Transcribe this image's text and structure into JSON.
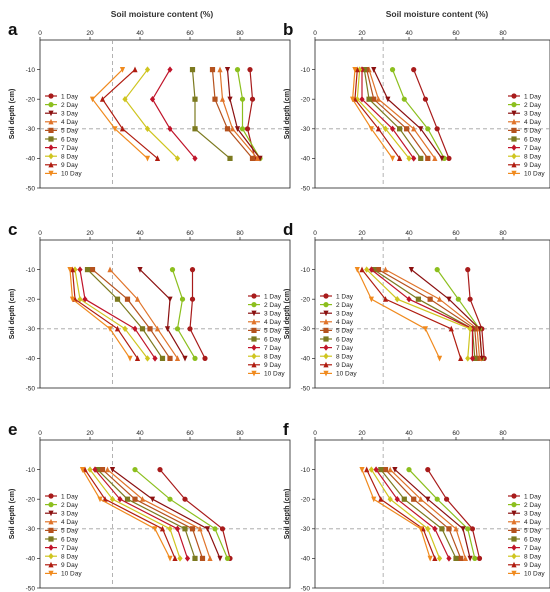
{
  "figure": {
    "column_titles": [
      "Soil moisture content (%)",
      "Soil moisture content (%)"
    ],
    "ylabel": "Soil depth (cm)"
  },
  "chart_data": [
    {
      "panel": "a",
      "type": "line",
      "xlabel": "Soil moisture content (%)",
      "ylabel": "Soil depth (cm)",
      "xlim": [
        0,
        100
      ],
      "ylim": [
        -50,
        0
      ],
      "xticks": [
        "0",
        "20",
        "40",
        "60",
        "80"
      ],
      "yticks": [
        "-10",
        "-20",
        "-30",
        "-40",
        "-50"
      ],
      "reference_lines": {
        "x": 29,
        "y": -30
      },
      "legend_position": "left",
      "depths": [
        -10,
        -20,
        -30,
        -40
      ],
      "series": [
        {
          "name": "1 Day",
          "values": [
            84,
            85,
            83,
            86
          ]
        },
        {
          "name": "2 Day",
          "values": [
            79,
            81,
            81,
            88
          ]
        },
        {
          "name": "3 Day",
          "values": [
            75,
            76,
            79,
            88
          ]
        },
        {
          "name": "4 Day",
          "values": [
            72,
            73,
            77,
            87
          ]
        },
        {
          "name": "5 Day",
          "values": [
            69,
            70,
            75,
            85
          ]
        },
        {
          "name": "6 Day",
          "values": [
            61,
            62,
            62,
            76
          ]
        },
        {
          "name": "7 Day",
          "values": [
            52,
            45,
            52,
            62
          ]
        },
        {
          "name": "8 Day",
          "values": [
            43,
            34,
            43,
            55
          ]
        },
        {
          "name": "9 Day",
          "values": [
            38,
            25,
            33,
            47
          ]
        },
        {
          "name": "10 Day",
          "values": [
            33,
            21,
            30,
            43
          ]
        }
      ]
    },
    {
      "panel": "b",
      "type": "line",
      "xlabel": "Soil moisture content (%)",
      "ylabel": "Soil depth (cm)",
      "xlim": [
        0,
        100
      ],
      "ylim": [
        -50,
        0
      ],
      "xticks": [
        "0",
        "20",
        "40",
        "60",
        "80"
      ],
      "yticks": [
        "-10",
        "-20",
        "-30",
        "-40",
        "-50"
      ],
      "reference_lines": {
        "x": 29,
        "y": -30
      },
      "legend_position": "right",
      "depths": [
        -10,
        -20,
        -30,
        -40
      ],
      "series": [
        {
          "name": "1 Day",
          "values": [
            42,
            47,
            52,
            57
          ]
        },
        {
          "name": "2 Day",
          "values": [
            33,
            38,
            48,
            55
          ]
        },
        {
          "name": "3 Day",
          "values": [
            25,
            31,
            45,
            54
          ]
        },
        {
          "name": "4 Day",
          "values": [
            23,
            27,
            42,
            51
          ]
        },
        {
          "name": "5 Day",
          "values": [
            22,
            25,
            39,
            48
          ]
        },
        {
          "name": "6 Day",
          "values": [
            21,
            23,
            36,
            45
          ]
        },
        {
          "name": "7 Day",
          "values": [
            20,
            20,
            33,
            42
          ]
        },
        {
          "name": "8 Day",
          "values": [
            19,
            18,
            30,
            40
          ]
        },
        {
          "name": "9 Day",
          "values": [
            18,
            17,
            27,
            36
          ]
        },
        {
          "name": "10 Day",
          "values": [
            17,
            16,
            24,
            33
          ]
        }
      ]
    },
    {
      "panel": "c",
      "type": "line",
      "xlabel": "Soil moisture content (%)",
      "ylabel": "Soil depth (cm)",
      "xlim": [
        0,
        100
      ],
      "ylim": [
        -50,
        0
      ],
      "xticks": [
        "0",
        "20",
        "40",
        "60",
        "80"
      ],
      "yticks": [
        "-10",
        "-20",
        "-30",
        "-40",
        "-50"
      ],
      "reference_lines": {
        "x": 29,
        "y": -30
      },
      "legend_position": "right",
      "depths": [
        -10,
        -20,
        -30,
        -40
      ],
      "series": [
        {
          "name": "1 Day",
          "values": [
            61,
            61,
            60,
            66
          ]
        },
        {
          "name": "2 Day",
          "values": [
            53,
            57,
            55,
            62
          ]
        },
        {
          "name": "3 Day",
          "values": [
            40,
            52,
            51,
            58
          ]
        },
        {
          "name": "4 Day",
          "values": [
            28,
            39,
            47,
            55
          ]
        },
        {
          "name": "5 Day",
          "values": [
            21,
            35,
            44,
            52
          ]
        },
        {
          "name": "6 Day",
          "values": [
            19,
            31,
            41,
            49
          ]
        },
        {
          "name": "7 Day",
          "values": [
            16,
            18,
            38,
            46
          ]
        },
        {
          "name": "8 Day",
          "values": [
            14,
            16,
            34,
            43
          ]
        },
        {
          "name": "9 Day",
          "values": [
            13,
            14,
            31,
            39
          ]
        },
        {
          "name": "10 Day",
          "values": [
            12,
            13,
            28,
            36
          ]
        }
      ]
    },
    {
      "panel": "d",
      "type": "line",
      "xlabel": "Soil moisture content (%)",
      "ylabel": "Soil depth (cm)",
      "xlim": [
        0,
        100
      ],
      "ylim": [
        -50,
        0
      ],
      "xticks": [
        "0",
        "20",
        "40",
        "60",
        "80"
      ],
      "yticks": [
        "-10",
        "-20",
        "-30",
        "-40",
        "-50"
      ],
      "reference_lines": {
        "x": 29,
        "y": -30
      },
      "legend_position": "left",
      "depths": [
        -10,
        -20,
        -30,
        -40
      ],
      "series": [
        {
          "name": "1 Day",
          "values": [
            65,
            66,
            71,
            72
          ]
        },
        {
          "name": "2 Day",
          "values": [
            52,
            61,
            70,
            71
          ]
        },
        {
          "name": "3 Day",
          "values": [
            41,
            57,
            70,
            71
          ]
        },
        {
          "name": "4 Day",
          "values": [
            30,
            53,
            69,
            70
          ]
        },
        {
          "name": "5 Day",
          "values": [
            27,
            49,
            68,
            69
          ]
        },
        {
          "name": "6 Day",
          "values": [
            25,
            44,
            67,
            68
          ]
        },
        {
          "name": "7 Day",
          "values": [
            24,
            40,
            67,
            67
          ]
        },
        {
          "name": "8 Day",
          "values": [
            22,
            35,
            66,
            65
          ]
        },
        {
          "name": "9 Day",
          "values": [
            20,
            30,
            58,
            62
          ]
        },
        {
          "name": "10 Day",
          "values": [
            18,
            24,
            47,
            53
          ]
        }
      ]
    },
    {
      "panel": "e",
      "type": "line",
      "xlabel": "Soil moisture content (%)",
      "ylabel": "Soil depth (cm)",
      "xlim": [
        0,
        100
      ],
      "ylim": [
        -50,
        0
      ],
      "xticks": [
        "0",
        "20",
        "40",
        "60",
        "80"
      ],
      "yticks": [
        "-10",
        "-20",
        "-30",
        "-40",
        "-50"
      ],
      "reference_lines": {
        "x": 29,
        "y": -30
      },
      "legend_position": "left",
      "depths": [
        -10,
        -20,
        -30,
        -40
      ],
      "series": [
        {
          "name": "1 Day",
          "values": [
            48,
            58,
            73,
            76
          ]
        },
        {
          "name": "2 Day",
          "values": [
            38,
            52,
            70,
            75
          ]
        },
        {
          "name": "3 Day",
          "values": [
            29,
            45,
            67,
            72
          ]
        },
        {
          "name": "4 Day",
          "values": [
            27,
            41,
            64,
            68
          ]
        },
        {
          "name": "5 Day",
          "values": [
            25,
            38,
            61,
            65
          ]
        },
        {
          "name": "6 Day",
          "values": [
            23,
            35,
            58,
            62
          ]
        },
        {
          "name": "7 Day",
          "values": [
            22,
            32,
            55,
            59
          ]
        },
        {
          "name": "8 Day",
          "values": [
            20,
            29,
            52,
            56
          ]
        },
        {
          "name": "9 Day",
          "values": [
            18,
            26,
            49,
            54
          ]
        },
        {
          "name": "10 Day",
          "values": [
            17,
            24,
            46,
            52
          ]
        }
      ]
    },
    {
      "panel": "f",
      "type": "line",
      "xlabel": "Soil moisture content (%)",
      "ylabel": "Soil depth (cm)",
      "xlim": [
        0,
        100
      ],
      "ylim": [
        -50,
        0
      ],
      "xticks": [
        "0",
        "20",
        "40",
        "60",
        "80"
      ],
      "yticks": [
        "-10",
        "-20",
        "-30",
        "-40",
        "-50"
      ],
      "reference_lines": {
        "x": 29,
        "y": -30
      },
      "legend_position": "right",
      "depths": [
        -10,
        -20,
        -30,
        -40
      ],
      "series": [
        {
          "name": "1 Day",
          "values": [
            48,
            56,
            67,
            70
          ]
        },
        {
          "name": "2 Day",
          "values": [
            40,
            52,
            65,
            68
          ]
        },
        {
          "name": "3 Day",
          "values": [
            34,
            48,
            63,
            66
          ]
        },
        {
          "name": "4 Day",
          "values": [
            32,
            45,
            60,
            64
          ]
        },
        {
          "name": "5 Day",
          "values": [
            30,
            42,
            57,
            62
          ]
        },
        {
          "name": "6 Day",
          "values": [
            28,
            38,
            54,
            60
          ]
        },
        {
          "name": "7 Day",
          "values": [
            26,
            35,
            51,
            57
          ]
        },
        {
          "name": "8 Day",
          "values": [
            24,
            32,
            48,
            53
          ]
        },
        {
          "name": "9 Day",
          "values": [
            22,
            28,
            46,
            51
          ]
        },
        {
          "name": "10 Day",
          "values": [
            20,
            25,
            45,
            49
          ]
        }
      ]
    }
  ],
  "styles": {
    "series_colors": [
      "#a81b1b",
      "#8cbf1e",
      "#8b1010",
      "#e0742a",
      "#b5521e",
      "#7c7a20",
      "#c0142a",
      "#cfc520",
      "#b01c10",
      "#f08a1e"
    ],
    "series_markers": [
      "circle",
      "circle",
      "triangle-down",
      "triangle-up",
      "square",
      "square",
      "diamond",
      "diamond",
      "triangle-up",
      "triangle-down"
    ],
    "reference_line_color": "#a0a0a0",
    "axis_color": "#222222"
  }
}
